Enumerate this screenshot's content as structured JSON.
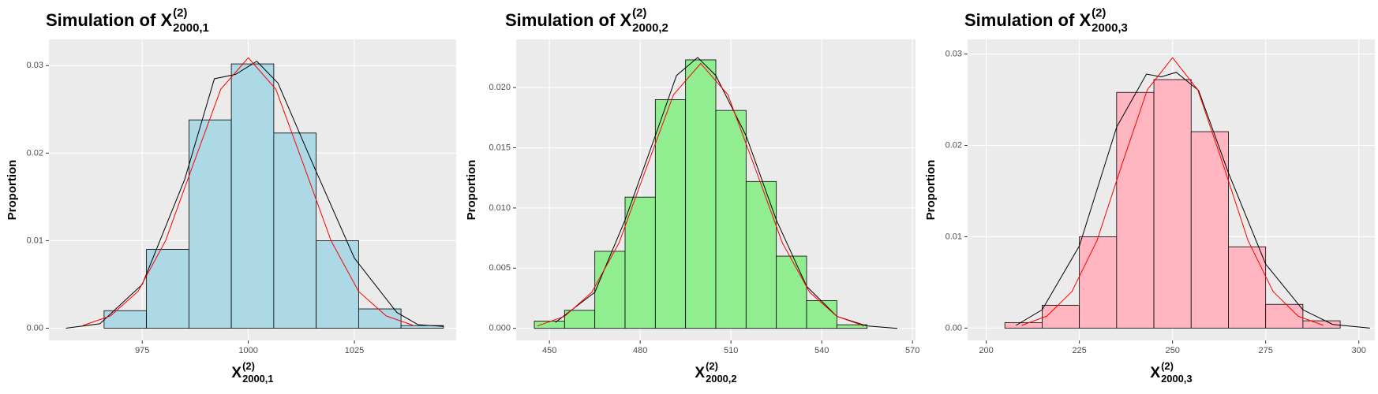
{
  "chart_data": [
    {
      "type": "histogram",
      "title": {
        "text": "Simulation of X",
        "sup": "(2)",
        "sub": "2000,1"
      },
      "xlabel": {
        "text": "X",
        "sup": "(2)",
        "sub": "2000,1"
      },
      "ylabel": "Proportion",
      "bins": [
        966,
        976,
        986,
        996,
        1006,
        1016,
        1026,
        1036,
        1046
      ],
      "values": [
        0.002,
        0.009,
        0.0238,
        0.0302,
        0.0223,
        0.01,
        0.0022,
        0.0003
      ],
      "color": "#add8e6",
      "lines": [
        {
          "color": "#000000",
          "x": [
            957,
            965,
            975,
            985,
            992,
            997,
            1002,
            1007,
            1015,
            1025,
            1035,
            1040,
            1046
          ],
          "values": [
            0,
            0.0005,
            0.005,
            0.017,
            0.0285,
            0.029,
            0.0305,
            0.028,
            0.019,
            0.008,
            0.0018,
            0.0004,
            0.0002
          ]
        },
        {
          "color": "#ff0000",
          "x": [
            961,
            967.5,
            974,
            980.5,
            987,
            993.5,
            1000,
            1006.5,
            1013,
            1019.5,
            1026,
            1032.5,
            1039
          ],
          "values": [
            0.0003,
            0.0014,
            0.0042,
            0.01,
            0.0187,
            0.0273,
            0.0309,
            0.0273,
            0.0187,
            0.01,
            0.0042,
            0.0014,
            0.0003
          ]
        }
      ],
      "xlim": [
        953,
        1049
      ],
      "xticks": [
        975,
        1000,
        1025
      ],
      "ylim": [
        -0.0014,
        0.033
      ],
      "yticks": [
        {
          "value": 0,
          "label": "0.00"
        },
        {
          "value": 0.01,
          "label": "0.01"
        },
        {
          "value": 0.02,
          "label": "0.02"
        },
        {
          "value": 0.03,
          "label": "0.03"
        }
      ],
      "grid": true
    },
    {
      "type": "histogram",
      "title": {
        "text": "Simulation of X",
        "sup": "(2)",
        "sub": "2000,2"
      },
      "xlabel": {
        "text": "X",
        "sup": "(2)",
        "sub": "2000,2"
      },
      "ylabel": "Proportion",
      "bins": [
        445,
        455,
        465,
        475,
        485,
        495,
        505,
        515,
        525,
        535,
        545,
        555
      ],
      "values": [
        0.0006,
        0.0015,
        0.0064,
        0.0109,
        0.019,
        0.0223,
        0.0181,
        0.0122,
        0.006,
        0.0023,
        0.0003
      ],
      "color": "#90ee90",
      "lines": [
        {
          "color": "#000000",
          "x": [
            452,
            465,
            475,
            485,
            492,
            499,
            505,
            515,
            525,
            535,
            545,
            555,
            565
          ],
          "values": [
            0.0005,
            0.003,
            0.009,
            0.016,
            0.021,
            0.0225,
            0.021,
            0.016,
            0.009,
            0.0035,
            0.001,
            0.0002,
            0
          ]
        },
        {
          "color": "#ff0000",
          "x": [
            446,
            455,
            464,
            473,
            482,
            491,
            500,
            509,
            518,
            527,
            536,
            545,
            554
          ],
          "values": [
            0.0002,
            0.001,
            0.003,
            0.0071,
            0.0133,
            0.0194,
            0.022,
            0.0194,
            0.0133,
            0.0071,
            0.003,
            0.001,
            0.0002
          ]
        }
      ],
      "xlim": [
        439,
        571
      ],
      "xticks": [
        450,
        480,
        510,
        540,
        570
      ],
      "ylim": [
        -0.001,
        0.024
      ],
      "yticks": [
        {
          "value": 0,
          "label": "0.000"
        },
        {
          "value": 0.005,
          "label": "0.005"
        },
        {
          "value": 0.01,
          "label": "0.010"
        },
        {
          "value": 0.015,
          "label": "0.015"
        },
        {
          "value": 0.02,
          "label": "0.020"
        }
      ],
      "grid": true
    },
    {
      "type": "histogram",
      "title": {
        "text": "Simulation of X",
        "sup": "(2)",
        "sub": "2000,3"
      },
      "xlabel": {
        "text": "X",
        "sup": "(2)",
        "sub": "2000,3"
      },
      "ylabel": "Proportion",
      "bins": [
        205,
        215,
        225,
        235,
        245,
        255,
        265,
        275,
        285,
        295
      ],
      "values": [
        0.0006,
        0.0025,
        0.01,
        0.0258,
        0.0272,
        0.0215,
        0.0089,
        0.0026,
        0.0008
      ],
      "color": "#ffb6c1",
      "lines": [
        {
          "color": "#000000",
          "x": [
            208,
            215,
            225,
            235,
            243,
            247,
            251,
            257,
            265,
            275,
            285,
            293,
            303
          ],
          "values": [
            0.0003,
            0.002,
            0.009,
            0.022,
            0.0278,
            0.0275,
            0.028,
            0.026,
            0.017,
            0.007,
            0.002,
            0.0004,
            0
          ]
        },
        {
          "color": "#ff0000",
          "x": [
            209.5,
            216.25,
            223,
            229.75,
            236.5,
            243.25,
            250,
            256.75,
            263.5,
            270.25,
            277,
            283.75,
            290.5
          ],
          "values": [
            0.0003,
            0.0013,
            0.004,
            0.0096,
            0.018,
            0.0261,
            0.0296,
            0.0261,
            0.018,
            0.0096,
            0.004,
            0.0013,
            0.0003
          ]
        }
      ],
      "xlim": [
        195,
        304.3
      ],
      "xticks": [
        200,
        225,
        250,
        275,
        300
      ],
      "ylim": [
        -0.00135,
        0.0316
      ],
      "yticks": [
        {
          "value": 0,
          "label": "0.00"
        },
        {
          "value": 0.01,
          "label": "0.01"
        },
        {
          "value": 0.02,
          "label": "0.02"
        },
        {
          "value": 0.03,
          "label": "0.03"
        }
      ],
      "grid": true
    }
  ]
}
